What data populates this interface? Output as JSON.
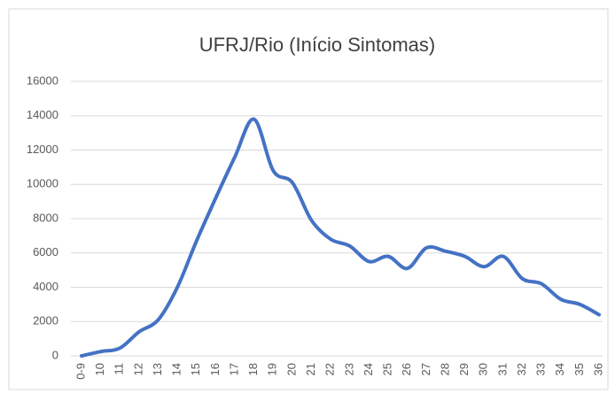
{
  "chart_data": {
    "type": "line",
    "title": "UFRJ/Rio (Início Sintomas)",
    "categories": [
      "0-9",
      "10",
      "11",
      "12",
      "13",
      "14",
      "15",
      "16",
      "17",
      "18",
      "19",
      "20",
      "21",
      "22",
      "23",
      "24",
      "25",
      "26",
      "27",
      "28",
      "29",
      "30",
      "31",
      "32",
      "33",
      "34",
      "35",
      "36"
    ],
    "values": [
      0,
      250,
      450,
      1400,
      2100,
      4000,
      6700,
      9200,
      11600,
      13800,
      10800,
      10100,
      7900,
      6800,
      6400,
      5500,
      5800,
      5100,
      6300,
      6100,
      5800,
      5200,
      5800,
      4500,
      4200,
      3300,
      3000,
      2400
    ],
    "color": "#4472c4",
    "ylim": [
      0,
      16000
    ],
    "yticks": [
      0,
      2000,
      4000,
      6000,
      8000,
      10000,
      12000,
      14000,
      16000
    ],
    "grid": true
  }
}
